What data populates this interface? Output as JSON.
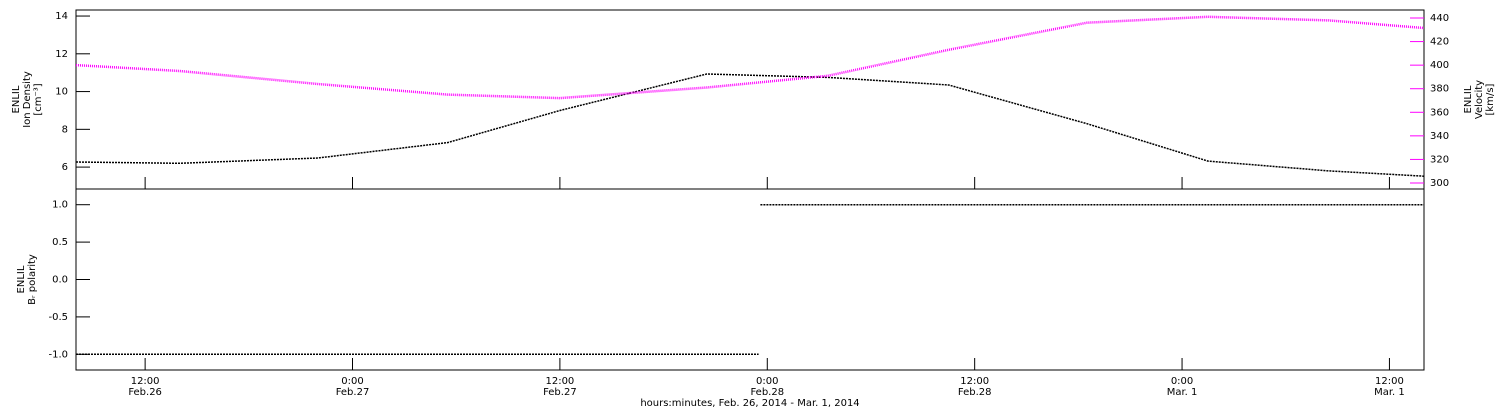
{
  "chart_data": [
    {
      "type": "line",
      "ylabel": [
        "ENLIL",
        "Ion Density",
        "[cm⁻³]"
      ],
      "y2label": [
        "ENLIL",
        "Velocity",
        "[km/s]"
      ],
      "x": [
        "2014-02-26T08:00",
        "2014-02-26T14:00",
        "2014-02-26T22:00",
        "2014-02-27T05:30",
        "2014-02-27T12:00",
        "2014-02-27T20:30",
        "2014-02-28T03:30",
        "2014-02-28T10:30",
        "2014-02-28T18:30",
        "2014-03-01T01:30",
        "2014-03-01T08:30",
        "2014-03-01T14:00"
      ],
      "xlim": [
        "2014-02-26T08:00",
        "2014-03-01T14:00"
      ],
      "series": [
        {
          "name": "Ion Density",
          "color": "#000000",
          "values": [
            6.27,
            6.2,
            6.48,
            7.3,
            9.0,
            10.93,
            10.75,
            10.35,
            8.3,
            6.32,
            5.8,
            5.52
          ]
        },
        {
          "name": "Velocity",
          "color": "#ff00ff",
          "axis": "y2",
          "values": [
            400,
            395,
            384,
            375,
            372,
            381,
            391,
            413,
            436,
            441,
            438,
            431.5
          ]
        }
      ],
      "ylim": [
        4.84,
        14.32
      ],
      "yticks": [
        6,
        8,
        10,
        12,
        14
      ],
      "y2lim": [
        294.9,
        446.8
      ],
      "y2ticks": [
        300,
        320,
        340,
        360,
        380,
        400,
        420,
        440
      ],
      "y2color": "#ff00ff"
    },
    {
      "type": "line",
      "ylabel": [
        "ENLIL",
        "Bᵣ polarity"
      ],
      "x": [
        "2014-02-26T08:00",
        "2014-02-27T23:30",
        "2014-02-27T23:33",
        "2014-02-27T23:36",
        "2014-03-01T14:00"
      ],
      "xlim": [
        "2014-02-26T08:00",
        "2014-03-01T14:00"
      ],
      "series": [
        {
          "name": "Br polarity",
          "color": "#000000",
          "values": [
            -1,
            -1,
            null,
            1,
            1
          ]
        }
      ],
      "ylim": [
        -1.21,
        1.21
      ],
      "yticks": [
        {
          "value": -1,
          "label": "-1.0"
        },
        {
          "value": -0.5,
          "label": "-0.5"
        },
        {
          "value": 0,
          "label": "0.0"
        },
        {
          "value": 0.5,
          "label": "0.5"
        },
        {
          "value": 1,
          "label": "1.0"
        }
      ],
      "xticks": [
        {
          "value": "2014-02-26T12:00",
          "label": [
            "12:00",
            "Feb.26"
          ]
        },
        {
          "value": "2014-02-27T00:00",
          "label": [
            "0:00",
            "Feb.27"
          ]
        },
        {
          "value": "2014-02-27T12:00",
          "label": [
            "12:00",
            "Feb.27"
          ]
        },
        {
          "value": "2014-02-28T00:00",
          "label": [
            "0:00",
            "Feb.28"
          ]
        },
        {
          "value": "2014-02-28T12:00",
          "label": [
            "12:00",
            "Feb.28"
          ]
        },
        {
          "value": "2014-03-01T00:00",
          "label": [
            "0:00",
            "Mar. 1"
          ]
        },
        {
          "value": "2014-03-01T12:00",
          "label": [
            "12:00",
            "Mar. 1"
          ]
        }
      ],
      "xlabel": "hours:minutes, Feb. 26, 2014 - Mar. 1, 2014"
    }
  ]
}
